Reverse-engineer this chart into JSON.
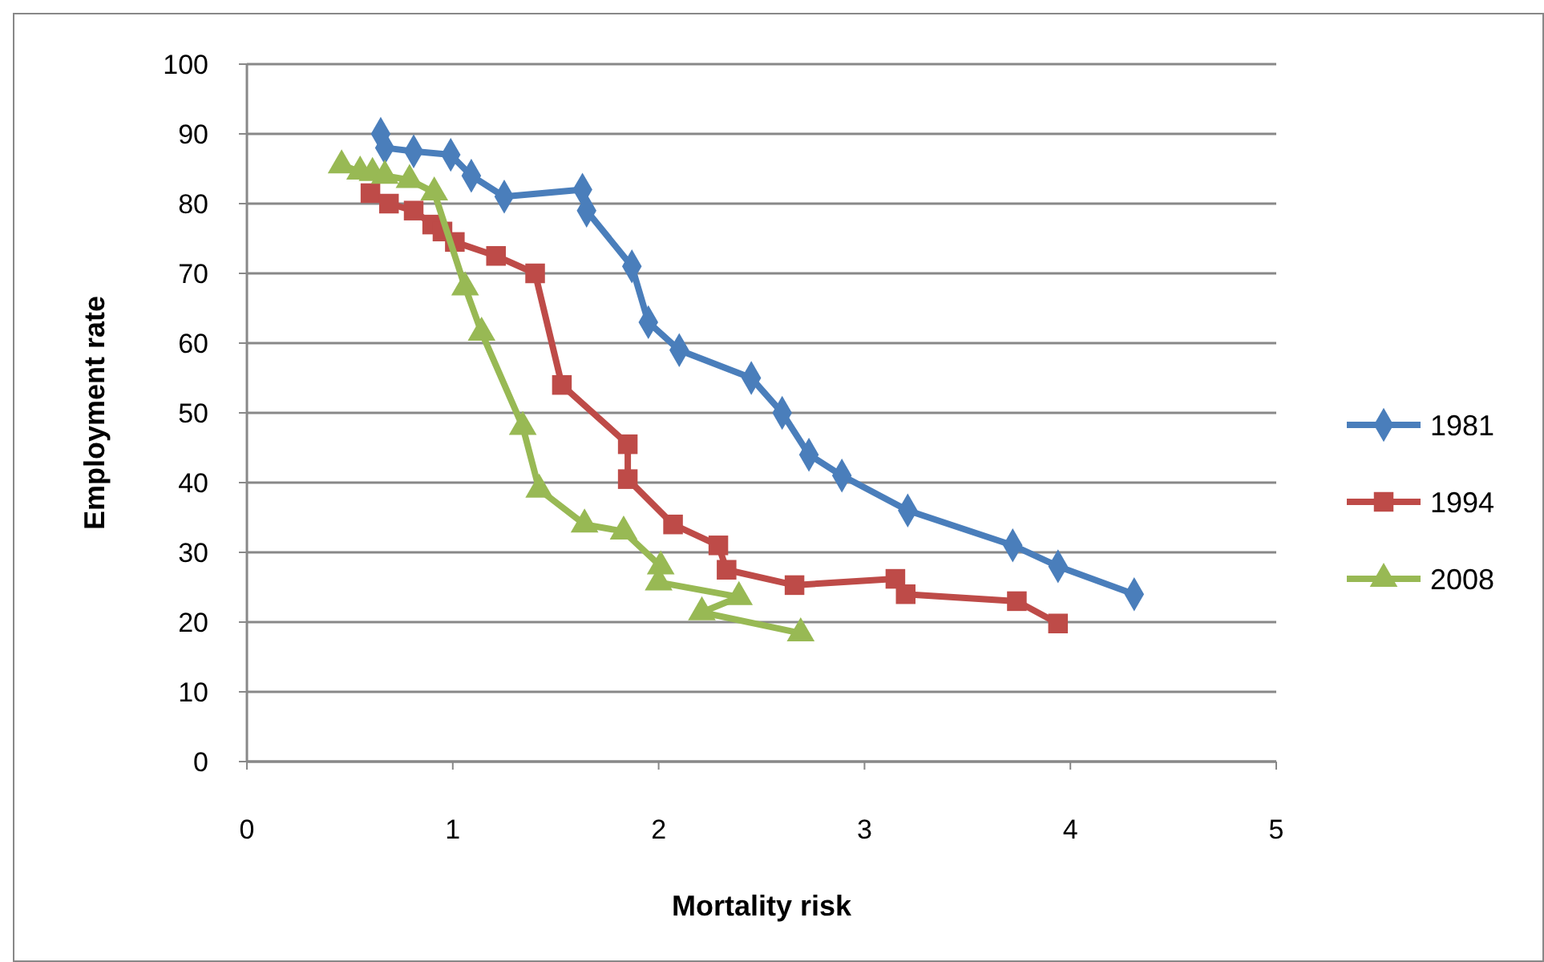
{
  "chart_data": {
    "type": "line",
    "xlabel": "Mortality risk",
    "ylabel": "Employment rate",
    "xlim": [
      0,
      5
    ],
    "xticks": [
      0,
      1,
      2,
      3,
      4,
      5
    ],
    "ylim": [
      0,
      100
    ],
    "yticks": [
      0,
      10,
      20,
      30,
      40,
      50,
      60,
      70,
      80,
      90,
      100
    ],
    "grid": "y",
    "legend": "right",
    "series": [
      {
        "name": "1981",
        "color": "#4a7ebb",
        "marker": "diamond",
        "x": [
          0.65,
          0.67,
          0.81,
          0.99,
          1.09,
          1.25,
          1.63,
          1.65,
          1.87,
          1.95,
          2.1,
          2.45,
          2.6,
          2.73,
          2.89,
          3.21,
          3.72,
          3.94,
          4.31
        ],
        "values": [
          90,
          88,
          87.5,
          87,
          84,
          81,
          82,
          79,
          71,
          63,
          59,
          55,
          50,
          44,
          41,
          36,
          31,
          28,
          24
        ]
      },
      {
        "name": "1994",
        "color": "#be4b48",
        "marker": "square",
        "x": [
          0.6,
          0.69,
          0.81,
          0.9,
          0.95,
          1.01,
          1.21,
          1.4,
          1.53,
          1.85,
          1.85,
          2.07,
          2.29,
          2.33,
          2.66,
          3.15,
          3.2,
          3.74,
          3.94
        ],
        "values": [
          81.5,
          80,
          79,
          77,
          76,
          74.5,
          72.5,
          70,
          54,
          45.5,
          40.5,
          34,
          31,
          27.5,
          25.3,
          26.2,
          24,
          23,
          19.8
        ]
      },
      {
        "name": "2008",
        "color": "#98b954",
        "marker": "triangle",
        "x": [
          0.46,
          0.55,
          0.61,
          0.67,
          0.79,
          0.91,
          1.06,
          1.14,
          1.34,
          1.42,
          1.64,
          1.83,
          2.01,
          2.0,
          2.39,
          2.21,
          2.69
        ],
        "values": [
          85.5,
          84.6,
          84.4,
          84,
          83.4,
          81.6,
          68,
          61.5,
          48,
          39,
          34,
          33,
          28,
          25.7,
          23.6,
          21.4,
          18.4
        ]
      }
    ]
  }
}
